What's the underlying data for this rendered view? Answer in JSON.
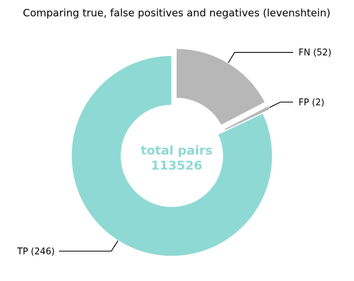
{
  "chart_data": {
    "type": "pie",
    "title": "Comparing true, false positives and negatives (levenshtein)",
    "slices": [
      {
        "label": "FN (52)",
        "value": 52,
        "color": "#b7b7b7",
        "exploded": true
      },
      {
        "label": "FP (2)",
        "value": 2,
        "color": "#b7b7b7",
        "exploded": true
      },
      {
        "label": "TP (246)",
        "value": 246,
        "color": "#8fd9d4",
        "exploded": false
      }
    ],
    "center_text": [
      "total pairs",
      "113526"
    ],
    "center_color": "#8fd9d4",
    "start_angle_deg": 90,
    "direction": "clockwise",
    "donut": true
  }
}
